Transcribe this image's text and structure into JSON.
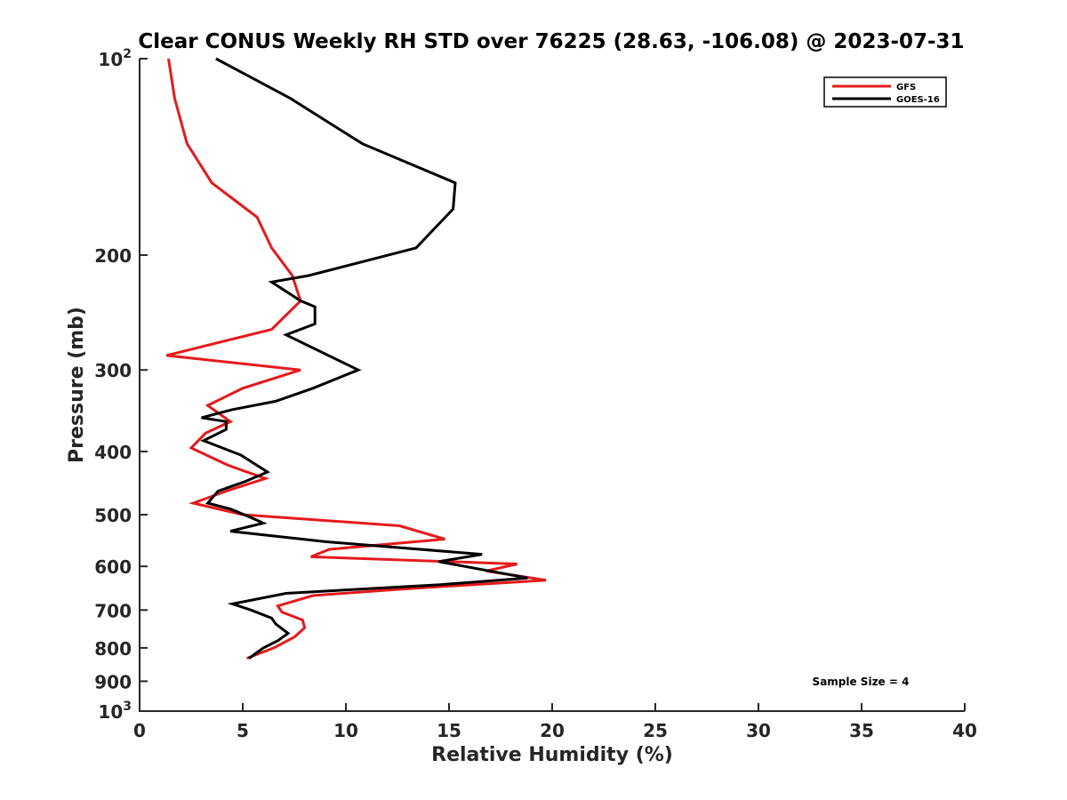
{
  "chart_data": {
    "type": "line",
    "title": "Clear CONUS Weekly RH STD over 76225 (28.63, -106.08) @ 2023-07-31",
    "xlabel": "Relative Humidity (%)",
    "ylabel": "Pressure (mb)",
    "xlim": [
      0,
      40
    ],
    "ylim": [
      100,
      1000
    ],
    "y_scale": "log",
    "y_reversed": true,
    "x_ticks": [
      "0",
      "5",
      "10",
      "15",
      "20",
      "25",
      "30",
      "35",
      "40"
    ],
    "y_ticks": [
      {
        "value": 100,
        "base": "10",
        "exp": "2"
      },
      {
        "value": 200,
        "label": "200"
      },
      {
        "value": 300,
        "label": "300"
      },
      {
        "value": 400,
        "label": "400"
      },
      {
        "value": 500,
        "label": "500"
      },
      {
        "value": 600,
        "label": "600"
      },
      {
        "value": 700,
        "label": "700"
      },
      {
        "value": 800,
        "label": "800"
      },
      {
        "value": 900,
        "label": "900"
      },
      {
        "value": 1000,
        "base": "10",
        "exp": "3"
      }
    ],
    "legend_position": "top-right",
    "grid": false,
    "series": [
      {
        "name": "GFS",
        "color": "#e41a1c",
        "points": [
          [
            1.4,
            100
          ],
          [
            1.7,
            115
          ],
          [
            2.3,
            135
          ],
          [
            3.5,
            155
          ],
          [
            5.7,
            175
          ],
          [
            6.4,
            195
          ],
          [
            7.4,
            215
          ],
          [
            7.8,
            235
          ],
          [
            6.4,
            260
          ],
          [
            1.3,
            285
          ],
          [
            7.8,
            300
          ],
          [
            5.0,
            320
          ],
          [
            3.3,
            340
          ],
          [
            4.4,
            360
          ],
          [
            3.2,
            375
          ],
          [
            2.5,
            395
          ],
          [
            4.3,
            420
          ],
          [
            6.1,
            440
          ],
          [
            4.2,
            460
          ],
          [
            2.6,
            480
          ],
          [
            5.0,
            500
          ],
          [
            12.6,
            520
          ],
          [
            14.8,
            545
          ],
          [
            9.2,
            565
          ],
          [
            8.3,
            580
          ],
          [
            18.3,
            595
          ],
          [
            16.8,
            610
          ],
          [
            19.7,
            630
          ],
          [
            12.7,
            650
          ],
          [
            8.4,
            665
          ],
          [
            6.7,
            690
          ],
          [
            6.9,
            705
          ],
          [
            7.9,
            725
          ],
          [
            8.0,
            745
          ],
          [
            7.5,
            770
          ],
          [
            6.5,
            800
          ],
          [
            5.2,
            830
          ]
        ]
      },
      {
        "name": "GOES-16",
        "color": "#000000",
        "points": [
          [
            3.7,
            100
          ],
          [
            7.3,
            115
          ],
          [
            10.8,
            135
          ],
          [
            15.3,
            155
          ],
          [
            15.2,
            170
          ],
          [
            13.4,
            195
          ],
          [
            8.2,
            215
          ],
          [
            6.4,
            220
          ],
          [
            7.8,
            235
          ],
          [
            8.5,
            240
          ],
          [
            8.5,
            255
          ],
          [
            7.1,
            265
          ],
          [
            10.6,
            300
          ],
          [
            8.4,
            320
          ],
          [
            6.6,
            335
          ],
          [
            4.5,
            345
          ],
          [
            3.0,
            355
          ],
          [
            4.2,
            360
          ],
          [
            4.2,
            370
          ],
          [
            3.1,
            385
          ],
          [
            4.9,
            405
          ],
          [
            6.2,
            430
          ],
          [
            5.1,
            445
          ],
          [
            3.8,
            460
          ],
          [
            3.3,
            480
          ],
          [
            4.4,
            490
          ],
          [
            5.4,
            505
          ],
          [
            6.0,
            515
          ],
          [
            4.4,
            530
          ],
          [
            9.0,
            550
          ],
          [
            16.6,
            575
          ],
          [
            14.5,
            590
          ],
          [
            18.8,
            625
          ],
          [
            14.6,
            640
          ],
          [
            7.1,
            660
          ],
          [
            4.5,
            685
          ],
          [
            5.4,
            700
          ],
          [
            6.4,
            720
          ],
          [
            6.6,
            735
          ],
          [
            7.2,
            760
          ],
          [
            6.7,
            780
          ],
          [
            6.0,
            800
          ],
          [
            5.3,
            830
          ]
        ]
      }
    ],
    "annotation": "Sample Size = 4"
  }
}
